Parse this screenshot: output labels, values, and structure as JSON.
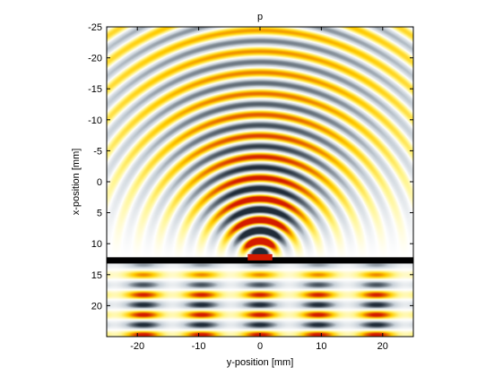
{
  "chart_data": {
    "type": "heatmap",
    "title": "p",
    "xlabel": "y-position [mm]",
    "ylabel": "x-position [mm]",
    "x_range": [
      -25,
      25
    ],
    "y_range": [
      -25,
      25
    ],
    "y_reversed": true,
    "x_ticks": [
      -20,
      -10,
      0,
      10,
      20
    ],
    "y_ticks": [
      -25,
      -20,
      -15,
      -10,
      -5,
      0,
      5,
      10,
      15,
      20
    ],
    "grid": false,
    "colormap": "hot-to-gray diverging",
    "colors": {
      "positive_peak": "#d41a00",
      "positive_mid": "#ffcc00",
      "positive_low": "#fff58c",
      "neutral": "#ffffff",
      "negative_low": "#c7d0d8",
      "negative_peak": "#1e2b38",
      "barrier": "#000000"
    },
    "features": {
      "barrier_x_position_mm": 12.7,
      "source_y_center_mm": 0,
      "source_half_width_mm": 2
    }
  }
}
